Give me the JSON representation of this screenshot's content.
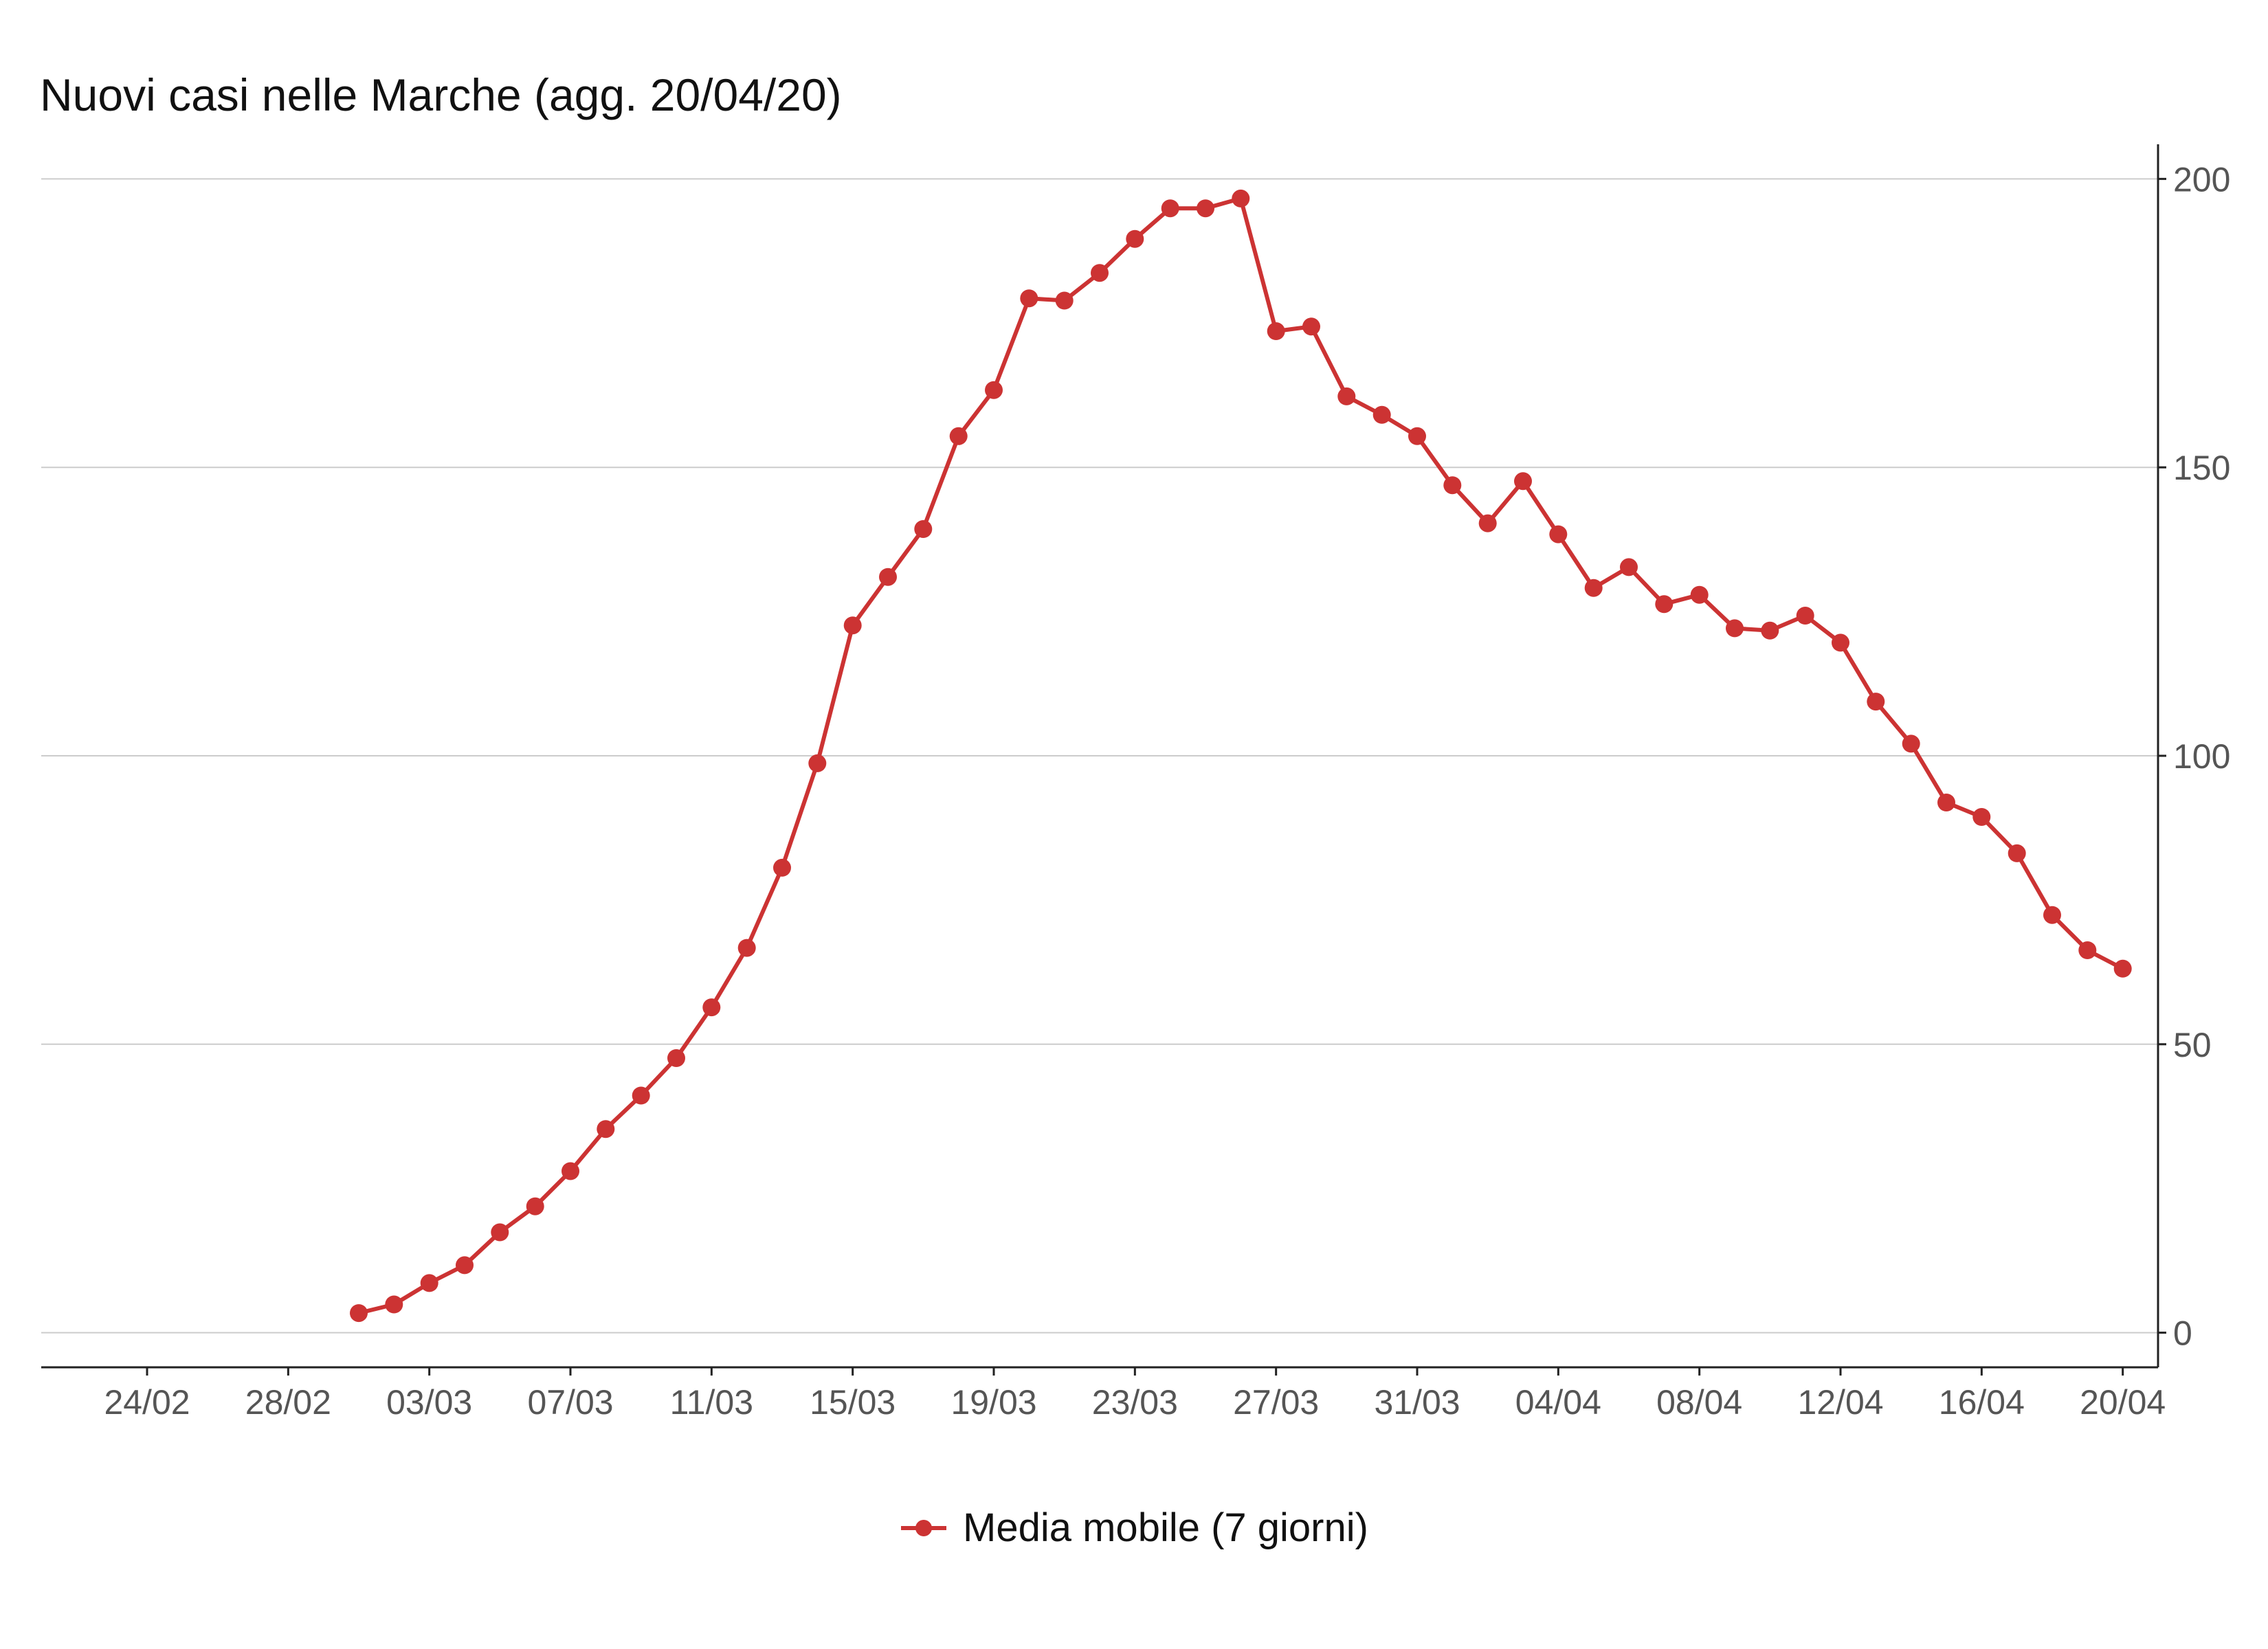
{
  "chart_data": {
    "type": "line",
    "title": "Nuovi casi nelle Marche (agg. 20/04/20)",
    "xlabel": "",
    "ylabel": "",
    "x_range": [
      "2020-02-21",
      "2020-04-21"
    ],
    "ylim": [
      -6,
      206
    ],
    "y_ticks": [
      0,
      50,
      100,
      150,
      200
    ],
    "y_axis_side": "right",
    "grid": "horizontal",
    "legend": "bottom",
    "x_ticks": [
      {
        "date": "2020-02-24",
        "label": "24/02"
      },
      {
        "date": "2020-02-28",
        "label": "28/02"
      },
      {
        "date": "2020-03-03",
        "label": "03/03"
      },
      {
        "date": "2020-03-07",
        "label": "07/03"
      },
      {
        "date": "2020-03-11",
        "label": "11/03"
      },
      {
        "date": "2020-03-15",
        "label": "15/03"
      },
      {
        "date": "2020-03-19",
        "label": "19/03"
      },
      {
        "date": "2020-03-23",
        "label": "23/03"
      },
      {
        "date": "2020-03-27",
        "label": "27/03"
      },
      {
        "date": "2020-03-31",
        "label": "31/03"
      },
      {
        "date": "2020-04-04",
        "label": "04/04"
      },
      {
        "date": "2020-04-08",
        "label": "08/04"
      },
      {
        "date": "2020-04-12",
        "label": "12/04"
      },
      {
        "date": "2020-04-16",
        "label": "16/04"
      },
      {
        "date": "2020-04-20",
        "label": "20/04"
      }
    ],
    "series": [
      {
        "name": "Media mobile (7 giorni)",
        "color": "#cc3333",
        "x": [
          "2020-03-01",
          "2020-03-02",
          "2020-03-03",
          "2020-03-04",
          "2020-03-05",
          "2020-03-06",
          "2020-03-07",
          "2020-03-08",
          "2020-03-09",
          "2020-03-10",
          "2020-03-11",
          "2020-03-12",
          "2020-03-13",
          "2020-03-14",
          "2020-03-15",
          "2020-03-16",
          "2020-03-17",
          "2020-03-18",
          "2020-03-19",
          "2020-03-20",
          "2020-03-21",
          "2020-03-22",
          "2020-03-23",
          "2020-03-24",
          "2020-03-25",
          "2020-03-26",
          "2020-03-27",
          "2020-03-28",
          "2020-03-29",
          "2020-03-30",
          "2020-03-31",
          "2020-04-01",
          "2020-04-02",
          "2020-04-03",
          "2020-04-04",
          "2020-04-05",
          "2020-04-06",
          "2020-04-07",
          "2020-04-08",
          "2020-04-09",
          "2020-04-10",
          "2020-04-11",
          "2020-04-12",
          "2020-04-13",
          "2020-04-14",
          "2020-04-15",
          "2020-04-16",
          "2020-04-17",
          "2020-04-18",
          "2020-04-19",
          "2020-04-20"
        ],
        "values": [
          3.4,
          4.9,
          8.6,
          11.7,
          17.4,
          21.9,
          28.0,
          35.3,
          41.1,
          47.6,
          56.4,
          66.7,
          80.6,
          98.7,
          122.6,
          131.0,
          139.3,
          155.4,
          163.4,
          179.3,
          178.9,
          183.7,
          189.6,
          194.9,
          194.9,
          196.6,
          173.6,
          174.4,
          162.3,
          159.1,
          155.4,
          146.9,
          140.3,
          147.6,
          138.4,
          129.1,
          132.7,
          126.3,
          127.9,
          122.1,
          121.7,
          124.3,
          119.6,
          109.4,
          102.1,
          91.9,
          89.4,
          83.1,
          72.4,
          66.3,
          63.1
        ]
      }
    ]
  }
}
